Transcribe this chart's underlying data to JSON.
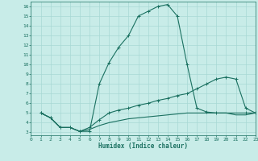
{
  "xlabel": "Humidex (Indice chaleur)",
  "bg_color": "#c8ece8",
  "line_color": "#1a7060",
  "grid_color": "#a8d8d4",
  "curve1_x": [
    1,
    2,
    3,
    4,
    5,
    6,
    7,
    8,
    9,
    10,
    11,
    12,
    13,
    14,
    15,
    16,
    17,
    18,
    19,
    22,
    23
  ],
  "curve1_y": [
    5.0,
    4.5,
    3.5,
    3.5,
    3.1,
    3.1,
    8.0,
    10.2,
    11.8,
    13.0,
    15.0,
    15.5,
    16.0,
    16.2,
    15.0,
    10.0,
    5.5,
    5.1,
    5.0,
    5.0,
    5.0
  ],
  "curve2_x": [
    1,
    2,
    3,
    4,
    5,
    6,
    7,
    8,
    9,
    10,
    11,
    12,
    13,
    14,
    15,
    16,
    17,
    18,
    19,
    20,
    21,
    22,
    23
  ],
  "curve2_y": [
    5.0,
    4.5,
    3.5,
    3.5,
    3.1,
    3.5,
    4.3,
    5.0,
    5.3,
    5.5,
    5.8,
    6.0,
    6.3,
    6.5,
    6.8,
    7.0,
    7.5,
    8.0,
    8.5,
    8.7,
    8.5,
    5.5,
    5.0
  ],
  "curve3_x": [
    1,
    2,
    3,
    4,
    5,
    6,
    7,
    8,
    9,
    10,
    11,
    12,
    13,
    14,
    15,
    16,
    17,
    18,
    19,
    20,
    21,
    22,
    23
  ],
  "curve3_y": [
    5.0,
    4.5,
    3.5,
    3.5,
    3.1,
    3.3,
    3.7,
    4.0,
    4.2,
    4.4,
    4.5,
    4.6,
    4.7,
    4.8,
    4.9,
    5.0,
    5.0,
    5.0,
    5.0,
    5.0,
    4.8,
    4.8,
    5.0
  ],
  "xlim": [
    0,
    23
  ],
  "ylim": [
    2.7,
    16.5
  ],
  "xticks": [
    0,
    1,
    2,
    3,
    4,
    5,
    6,
    7,
    8,
    9,
    10,
    11,
    12,
    13,
    14,
    15,
    16,
    17,
    18,
    19,
    20,
    21,
    22,
    23
  ],
  "yticks": [
    3,
    4,
    5,
    6,
    7,
    8,
    9,
    10,
    11,
    12,
    13,
    14,
    15,
    16
  ]
}
